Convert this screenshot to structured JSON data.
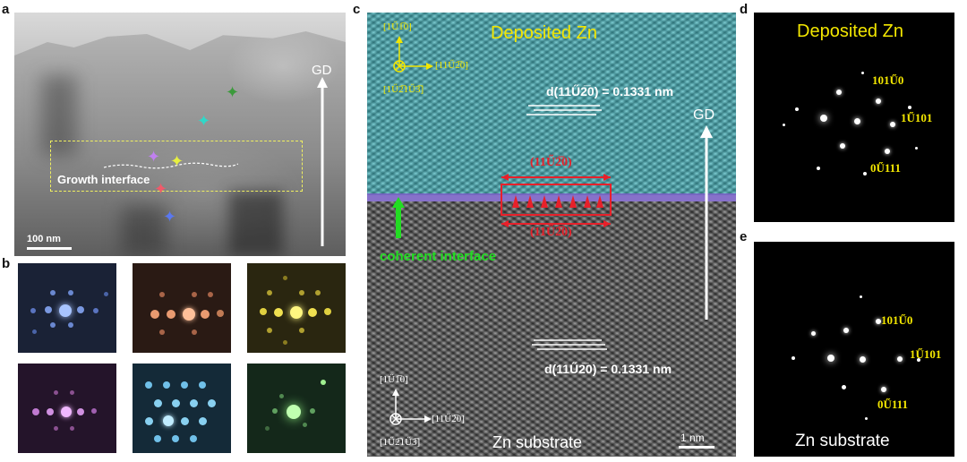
{
  "panels": {
    "a": "a",
    "b": "b",
    "c": "c",
    "d": "d",
    "e": "e"
  },
  "panel_a": {
    "gd": "GD",
    "growth_interface": "Growth interface",
    "scale": "100 nm",
    "marker_colors": [
      "#3c9a3c",
      "#2fd8c8",
      "#c080f0",
      "#e8f040",
      "#f05a6a",
      "#5a78f0"
    ]
  },
  "panel_c": {
    "deposited": "Deposited Zn",
    "substrate": "Zn substrate",
    "d_top": "d(11Ű2̅0) = 0.1331 nm",
    "d_bottom": "d(11Ű2̅0) = 0.1331 nm",
    "gd": "GD",
    "plane_top": "(11Ű2̅0)",
    "plane_bottom": "(11Ű2̅0)",
    "coherent": "coherent interface",
    "scale": "1 nm",
    "axes_top": {
      "up": "[1Ű1̅0]",
      "right": "[11Ű2̅0]",
      "out": "[1Ű2̅1Ű3̅]"
    },
    "axes_bottom": {
      "up": "[1Ű1̅0]",
      "right": "[11Ű2̅0]",
      "out": "[1Ű2̅1Ű3̅]"
    },
    "colors": {
      "top": "#4fb0b7",
      "interface": "#7a62c4",
      "arrows": "#e8202a",
      "coherent": "#22dd22"
    }
  },
  "panel_d": {
    "title": "Deposited Zn",
    "idx1": "101Ű0",
    "idx2": "1Ű101",
    "idx3": "0Ű111"
  },
  "panel_e": {
    "title": "Zn substrate",
    "idx1": "101Ű0",
    "idx2": "1Ű101",
    "idx3": "0Ű111"
  }
}
